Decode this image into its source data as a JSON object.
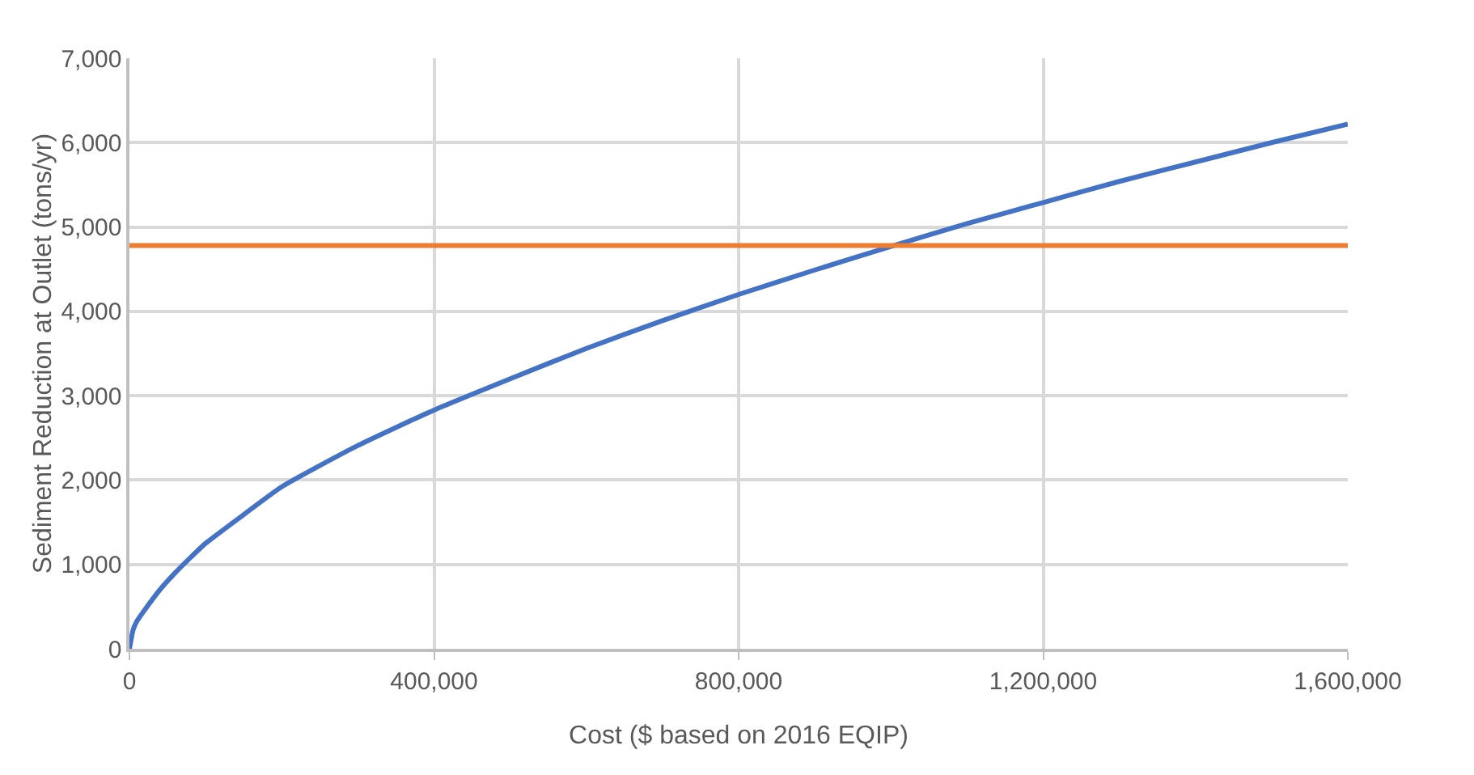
{
  "chart_data": {
    "type": "line",
    "xlabel": "Cost ($ based on 2016 EQIP)",
    "ylabel": "Sediment Reduction at Outlet (tons/yr)",
    "x": [
      0,
      5000,
      10000,
      20000,
      40000,
      60000,
      80000,
      100000,
      150000,
      200000,
      300000,
      400000,
      500000,
      600000,
      700000,
      800000,
      900000,
      1000000,
      1100000,
      1200000,
      1300000,
      1400000,
      1500000,
      1600000
    ],
    "series": [
      {
        "color": "#4472c4",
        "values": [
          0,
          230,
          330,
          460,
          700,
          900,
          1080,
          1250,
          1590,
          1920,
          2410,
          2830,
          3200,
          3560,
          3890,
          4200,
          4490,
          4770,
          5040,
          5290,
          5540,
          5770,
          6000,
          6220
        ]
      }
    ],
    "ref_lines": [
      {
        "axis": "y",
        "value": 4780,
        "color": "#ed7d31"
      }
    ],
    "xlim": [
      0,
      1600000
    ],
    "xticks": [
      {
        "value": 0,
        "label": "0"
      },
      {
        "value": 400000,
        "label": "400,000"
      },
      {
        "value": 800000,
        "label": "800,000"
      },
      {
        "value": 1200000,
        "label": "1,200,000"
      },
      {
        "value": 1600000,
        "label": "1,600,000"
      }
    ],
    "ylim": [
      0,
      7000
    ],
    "yticks": [
      {
        "value": 0,
        "label": "0"
      },
      {
        "value": 1000,
        "label": "1,000"
      },
      {
        "value": 2000,
        "label": "2,000"
      },
      {
        "value": 3000,
        "label": "3,000"
      },
      {
        "value": 4000,
        "label": "4,000"
      },
      {
        "value": 5000,
        "label": "5,000"
      },
      {
        "value": 6000,
        "label": "6,000"
      },
      {
        "value": 7000,
        "label": "7,000"
      }
    ],
    "grid": true,
    "marker": "none",
    "line_style": "solid"
  }
}
